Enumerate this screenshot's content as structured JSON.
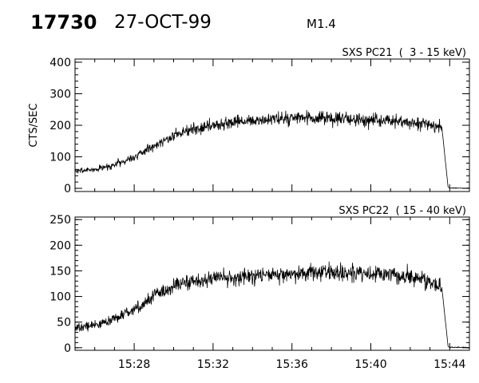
{
  "header": {
    "event_id": "17730",
    "date": "27-OCT-99",
    "flare_class": "M1.4"
  },
  "chart_data": [
    {
      "type": "line",
      "title": "SXS PC21  (  3 - 15 keV)",
      "xlabel": "",
      "ylabel": "CTS/SEC",
      "x_unit": "UT time",
      "xlim": [
        "15:25",
        "15:45"
      ],
      "ylim": [
        -10,
        410
      ],
      "yticks": [
        0,
        100,
        200,
        300,
        400
      ],
      "xticks": [
        "15:28",
        "15:32",
        "15:36",
        "15:40",
        "15:44"
      ],
      "grid": false,
      "series": [
        {
          "profile": [
            [
              "15:25:00",
              55
            ],
            [
              "15:26:00",
              60
            ],
            [
              "15:27:00",
              75
            ],
            [
              "15:28:00",
              100
            ],
            [
              "15:29:00",
              135
            ],
            [
              "15:30:00",
              168
            ],
            [
              "15:31:00",
              188
            ],
            [
              "15:32:00",
              200
            ],
            [
              "15:33:00",
              208
            ],
            [
              "15:34:00",
              213
            ],
            [
              "15:35:00",
              218
            ],
            [
              "15:36:00",
              222
            ],
            [
              "15:37:00",
              222
            ],
            [
              "15:38:00",
              220
            ],
            [
              "15:39:00",
              218
            ],
            [
              "15:40:00",
              216
            ],
            [
              "15:41:00",
              213
            ],
            [
              "15:42:00",
              208
            ],
            [
              "15:43:00",
              200
            ],
            [
              "15:43:36",
              195
            ],
            [
              "15:43:55",
              5
            ],
            [
              "15:44:00",
              0
            ],
            [
              "15:45:00",
              0
            ]
          ]
        }
      ]
    },
    {
      "type": "line",
      "title": "SXS PC22  ( 15 - 40 keV)",
      "xlabel": "",
      "ylabel": "",
      "x_unit": "UT time",
      "xlim": [
        "15:25",
        "15:45"
      ],
      "ylim": [
        -5,
        255
      ],
      "yticks": [
        0,
        50,
        100,
        150,
        200,
        250
      ],
      "xticks": [
        "15:28",
        "15:32",
        "15:36",
        "15:40",
        "15:44"
      ],
      "grid": false,
      "series": [
        {
          "profile": [
            [
              "15:25:00",
              38
            ],
            [
              "15:26:00",
              45
            ],
            [
              "15:27:00",
              55
            ],
            [
              "15:28:00",
              75
            ],
            [
              "15:29:00",
              100
            ],
            [
              "15:30:00",
              120
            ],
            [
              "15:31:00",
              130
            ],
            [
              "15:32:00",
              135
            ],
            [
              "15:33:00",
              138
            ],
            [
              "15:34:00",
              140
            ],
            [
              "15:35:00",
              142
            ],
            [
              "15:36:00",
              144
            ],
            [
              "15:37:00",
              146
            ],
            [
              "15:38:00",
              146
            ],
            [
              "15:39:00",
              146
            ],
            [
              "15:40:00",
              145
            ],
            [
              "15:41:00",
              142
            ],
            [
              "15:42:00",
              138
            ],
            [
              "15:43:00",
              130
            ],
            [
              "15:43:36",
              118
            ],
            [
              "15:43:55",
              3
            ],
            [
              "15:44:00",
              0
            ],
            [
              "15:45:00",
              0
            ]
          ]
        }
      ]
    }
  ]
}
